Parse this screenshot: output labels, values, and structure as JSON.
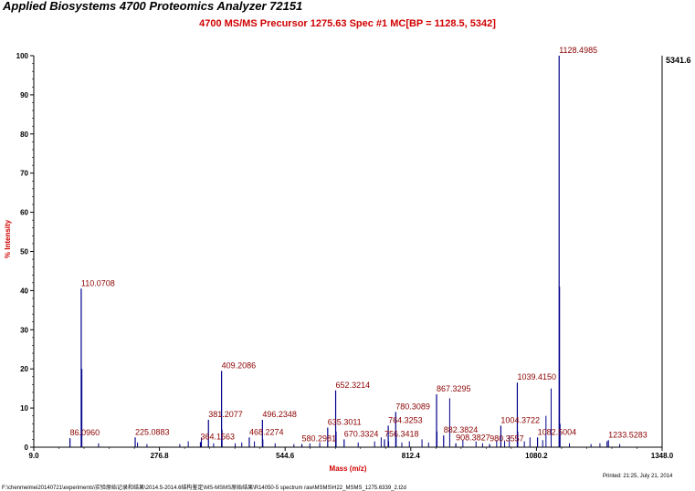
{
  "header": {
    "app_title": "Applied Biosystems 4700 Proteomics Analyzer 72151",
    "spectrum_title": "4700 MS/MS Precursor 1275.63 Spec #1 MC[BP = 1128.5, 5342]",
    "bp_intensity": "5341.6"
  },
  "footer": {
    "printed": "Printed: 21:25, July 21, 2014",
    "file_path": "F:\\chenmeimei20140721\\experiments\\实验原始记录和结果\\2014.5-2014.6结构鉴定\\MS-MSMS原始结果\\R14050-5 spectrum raw\\MSMS\\H22_MSMS_1275.6339_2.t2d"
  },
  "colors": {
    "peak": "#00008b",
    "label": "#8b0000",
    "title": "#d00000",
    "axis": "#000000"
  },
  "chart_data": {
    "type": "bar",
    "xlabel": "Mass (m/z)",
    "ylabel": "% Intensity",
    "xlim": [
      9.0,
      1348.0
    ],
    "ylim": [
      0,
      100
    ],
    "x_ticks": [
      "9.0",
      "276.8",
      "544.6",
      "812.4",
      "1080.2",
      "1348.0"
    ],
    "y_ticks": [
      "0",
      "10",
      "20",
      "30",
      "40",
      "50",
      "60",
      "70",
      "80",
      "90",
      "100"
    ],
    "grid": false,
    "labeled_peaks": [
      {
        "label": "86.0960",
        "mz": 86.1,
        "intensity": 2.3
      },
      {
        "label": "110.0708",
        "mz": 110.07,
        "intensity": 40.5
      },
      {
        "label": "225.0883",
        "mz": 225.09,
        "intensity": 2.5
      },
      {
        "label": "364.1563",
        "mz": 364.16,
        "intensity": 1.3
      },
      {
        "label": "381.2077",
        "mz": 381.21,
        "intensity": 7.0
      },
      {
        "label": "409.2086",
        "mz": 409.21,
        "intensity": 19.5
      },
      {
        "label": "468.2274",
        "mz": 468.23,
        "intensity": 2.5
      },
      {
        "label": "496.2348",
        "mz": 496.23,
        "intensity": 7.0
      },
      {
        "label": "580.2981",
        "mz": 580.3,
        "intensity": 0.8
      },
      {
        "label": "635.3011",
        "mz": 635.3,
        "intensity": 5.0
      },
      {
        "label": "652.3214",
        "mz": 652.32,
        "intensity": 14.5
      },
      {
        "label": "670.3324",
        "mz": 670.33,
        "intensity": 2.0
      },
      {
        "label": "764.3253",
        "mz": 764.33,
        "intensity": 5.5
      },
      {
        "label": "756.3418",
        "mz": 756.34,
        "intensity": 2.0
      },
      {
        "label": "780.3089",
        "mz": 780.31,
        "intensity": 9.0
      },
      {
        "label": "867.3295",
        "mz": 867.33,
        "intensity": 13.5
      },
      {
        "label": "882.3824",
        "mz": 882.38,
        "intensity": 3.0
      },
      {
        "label": "908.3827",
        "mz": 908.38,
        "intensity": 1.0
      },
      {
        "label": "980.3557",
        "mz": 980.36,
        "intensity": 0.8
      },
      {
        "label": "1004.3722",
        "mz": 1004.37,
        "intensity": 5.5
      },
      {
        "label": "1039.4150",
        "mz": 1039.42,
        "intensity": 16.5
      },
      {
        "label": "1082.5004",
        "mz": 1082.5,
        "intensity": 2.5
      },
      {
        "label": "1128.4985",
        "mz": 1128.5,
        "intensity": 100
      },
      {
        "label": "1233.5283",
        "mz": 1233.53,
        "intensity": 1.8
      }
    ],
    "unlabeled_peaks": [
      {
        "mz": 111.5,
        "intensity": 20.0
      },
      {
        "mz": 147.1,
        "intensity": 1.0
      },
      {
        "mz": 230.1,
        "intensity": 1.2
      },
      {
        "mz": 250.1,
        "intensity": 0.8
      },
      {
        "mz": 320.2,
        "intensity": 0.8
      },
      {
        "mz": 338.2,
        "intensity": 1.5
      },
      {
        "mz": 366.2,
        "intensity": 2.5
      },
      {
        "mz": 392.2,
        "intensity": 1.0
      },
      {
        "mz": 410.2,
        "intensity": 4.5
      },
      {
        "mz": 438.2,
        "intensity": 1.0
      },
      {
        "mz": 452.2,
        "intensity": 1.2
      },
      {
        "mz": 479.2,
        "intensity": 1.5
      },
      {
        "mz": 497.2,
        "intensity": 2.0
      },
      {
        "mz": 523.3,
        "intensity": 1.0
      },
      {
        "mz": 563.3,
        "intensity": 0.8
      },
      {
        "mz": 597.3,
        "intensity": 1.0
      },
      {
        "mz": 618.3,
        "intensity": 1.2
      },
      {
        "mz": 653.3,
        "intensity": 4.0
      },
      {
        "mz": 700.3,
        "intensity": 1.2
      },
      {
        "mz": 735.3,
        "intensity": 1.5
      },
      {
        "mz": 749.3,
        "intensity": 2.5
      },
      {
        "mz": 765.3,
        "intensity": 1.5
      },
      {
        "mz": 781.3,
        "intensity": 3.0
      },
      {
        "mz": 793.3,
        "intensity": 1.2
      },
      {
        "mz": 809.4,
        "intensity": 1.5
      },
      {
        "mz": 836.3,
        "intensity": 2.0
      },
      {
        "mz": 850.3,
        "intensity": 1.2
      },
      {
        "mz": 868.3,
        "intensity": 4.0
      },
      {
        "mz": 895.3,
        "intensity": 12.5
      },
      {
        "mz": 923.4,
        "intensity": 1.8
      },
      {
        "mz": 951.4,
        "intensity": 1.5
      },
      {
        "mz": 965.4,
        "intensity": 1.0
      },
      {
        "mz": 995.4,
        "intensity": 1.8
      },
      {
        "mz": 1012.4,
        "intensity": 1.5
      },
      {
        "mz": 1022.4,
        "intensity": 3.0
      },
      {
        "mz": 1040.4,
        "intensity": 4.0
      },
      {
        "mz": 1054.4,
        "intensity": 1.5
      },
      {
        "mz": 1066.4,
        "intensity": 2.5
      },
      {
        "mz": 1093.5,
        "intensity": 1.8
      },
      {
        "mz": 1100.5,
        "intensity": 8.0
      },
      {
        "mz": 1111.5,
        "intensity": 15.0
      },
      {
        "mz": 1129.5,
        "intensity": 41.0
      },
      {
        "mz": 1130.5,
        "intensity": 6.0
      },
      {
        "mz": 1150.5,
        "intensity": 1.0
      },
      {
        "mz": 1196.5,
        "intensity": 0.8
      },
      {
        "mz": 1215.5,
        "intensity": 1.0
      },
      {
        "mz": 1230.5,
        "intensity": 1.5
      },
      {
        "mz": 1257.6,
        "intensity": 0.8
      }
    ]
  }
}
